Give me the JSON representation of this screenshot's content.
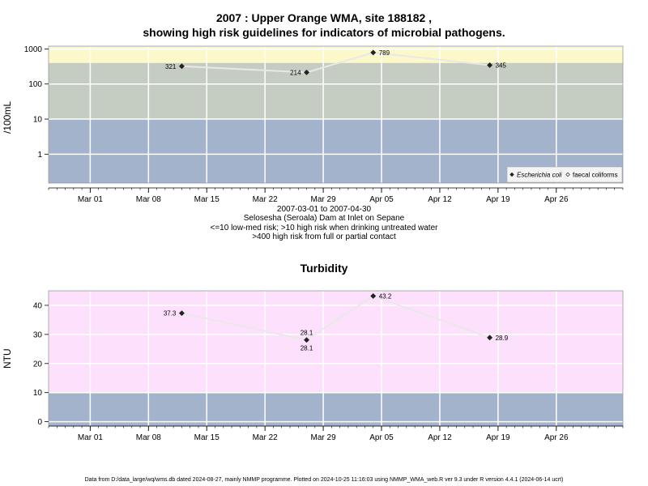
{
  "title_line1": "2007 : Upper Orange WMA, site 188182 ,",
  "title_line2": "showing high risk guidelines for indicators of microbial pathogens.",
  "subtitle": {
    "range": "2007-03-01 to 2007-04-30",
    "site": "Selosesha (Seroala) Dam at Inlet on Sepane",
    "risk1": "<=10 low-med risk; >10 high risk when drinking untreated water",
    "risk2": ">400 high risk from full or partial contact"
  },
  "footer": "Data from D:/data_large/wq/wms.db dated 2024-08-27, mainly NMMP programme. Plotted on 2024-10-25 11:16:03 using NMMP_WMA_web.R ver 9.3 under R version 4.4.1 (2024-06-14 ucrt)",
  "colors": {
    "low_band": "#a3b3cb",
    "mid_band": "#c5cdc2",
    "high_band": "#fdf8c9",
    "turb_band": "#fde0fb",
    "line": "#e8e8e8"
  },
  "chart_data": [
    {
      "type": "line",
      "title": "",
      "ylabel": "/100mL",
      "yscale": "log",
      "ylim": [
        0.15,
        1200
      ],
      "yticks": [
        {
          "v": 1,
          "label": "1"
        },
        {
          "v": 10,
          "label": "10"
        },
        {
          "v": 100,
          "label": "100"
        },
        {
          "v": 1000,
          "label": "1000"
        }
      ],
      "bands": [
        {
          "from": 0.15,
          "to": 10,
          "color": "#a3b3cb"
        },
        {
          "from": 10,
          "to": 400,
          "color": "#c5cdc2"
        },
        {
          "from": 400,
          "to": 1200,
          "color": "#fdf8c9"
        }
      ],
      "xlim": [
        "2007-02-24",
        "2007-05-04"
      ],
      "xticks": [
        {
          "date": "2007-03-01",
          "label": "Mar 01"
        },
        {
          "date": "2007-03-08",
          "label": "Mar 08"
        },
        {
          "date": "2007-03-15",
          "label": "Mar 15"
        },
        {
          "date": "2007-03-22",
          "label": "Mar 22"
        },
        {
          "date": "2007-03-29",
          "label": "Mar 29"
        },
        {
          "date": "2007-04-05",
          "label": "Apr 05"
        },
        {
          "date": "2007-04-12",
          "label": "Apr 12"
        },
        {
          "date": "2007-04-19",
          "label": "Apr 19"
        },
        {
          "date": "2007-04-26",
          "label": "Apr 26"
        }
      ],
      "series": [
        {
          "name": "Escherichia coli",
          "marker": "filled-diamond",
          "points": [
            {
              "date": "2007-03-12",
              "value": 321,
              "label": "321",
              "pos": "left"
            },
            {
              "date": "2007-03-27",
              "value": 214,
              "label": "214",
              "pos": "left"
            },
            {
              "date": "2007-04-04",
              "value": 789,
              "label": "789",
              "pos": "right"
            },
            {
              "date": "2007-04-18",
              "value": 345,
              "label": "345",
              "pos": "right"
            }
          ]
        }
      ],
      "legend": {
        "placement": "bottom-right",
        "entries": [
          {
            "label": "Escherichia coli",
            "marker": "filled-diamond",
            "italic": true
          },
          {
            "label": "faecal coliforms",
            "marker": "open-diamond",
            "italic": false
          }
        ]
      }
    },
    {
      "type": "line",
      "title": "Turbidity",
      "ylabel": "NTU",
      "yscale": "linear",
      "ylim": [
        -1.5,
        45
      ],
      "yticks": [
        {
          "v": 0,
          "label": "0"
        },
        {
          "v": 10,
          "label": "10"
        },
        {
          "v": 20,
          "label": "20"
        },
        {
          "v": 30,
          "label": "30"
        },
        {
          "v": 40,
          "label": "40"
        }
      ],
      "bands": [
        {
          "from": -1.5,
          "to": 10,
          "color": "#a3b3cb"
        },
        {
          "from": 10,
          "to": 45,
          "color": "#fde0fb"
        }
      ],
      "xlim": [
        "2007-02-24",
        "2007-05-04"
      ],
      "xticks": [
        {
          "date": "2007-03-01",
          "label": "Mar 01"
        },
        {
          "date": "2007-03-08",
          "label": "Mar 08"
        },
        {
          "date": "2007-03-15",
          "label": "Mar 15"
        },
        {
          "date": "2007-03-22",
          "label": "Mar 22"
        },
        {
          "date": "2007-03-29",
          "label": "Mar 29"
        },
        {
          "date": "2007-04-05",
          "label": "Apr 05"
        },
        {
          "date": "2007-04-12",
          "label": "Apr 12"
        },
        {
          "date": "2007-04-19",
          "label": "Apr 19"
        },
        {
          "date": "2007-04-26",
          "label": "Apr 26"
        }
      ],
      "series": [
        {
          "name": "",
          "marker": "filled-diamond",
          "points": [
            {
              "date": "2007-03-12",
              "value": 37.3,
              "label": "37.3",
              "pos": "left"
            },
            {
              "date": "2007-03-27",
              "value": 28.1,
              "label": "28.1",
              "pos": "both"
            },
            {
              "date": "2007-04-04",
              "value": 43.2,
              "label": "43.2",
              "pos": "right"
            },
            {
              "date": "2007-04-18",
              "value": 28.9,
              "label": "28.9",
              "pos": "right"
            }
          ]
        }
      ]
    }
  ]
}
